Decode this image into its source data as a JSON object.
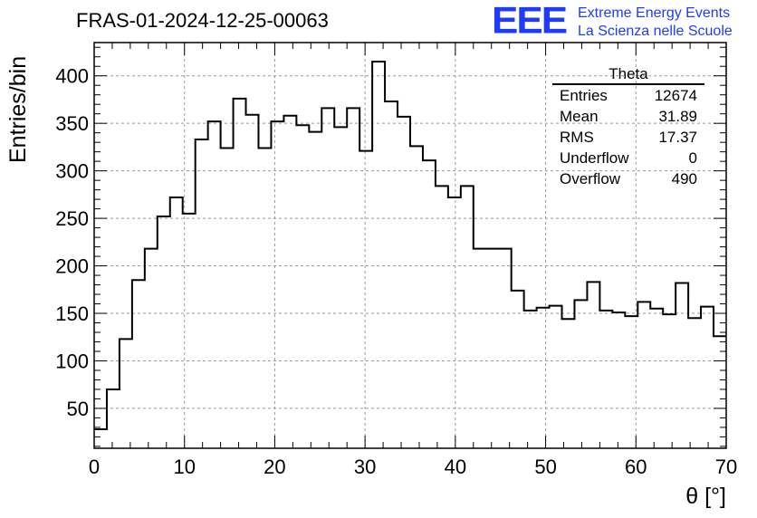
{
  "title": "FRAS-01-2024-12-25-00063",
  "logo": {
    "mark": "EEE",
    "line1": "Extreme Energy Events",
    "line2": "La Scienza nelle Scuole",
    "color": "#1f3bff"
  },
  "stats_box": {
    "title": "Theta",
    "rows": [
      {
        "label": "Entries",
        "value": "12674"
      },
      {
        "label": "Mean",
        "value": "31.89"
      },
      {
        "label": "RMS",
        "value": "17.37"
      },
      {
        "label": "Underflow",
        "value": "0"
      },
      {
        "label": "Overflow",
        "value": "490"
      }
    ]
  },
  "chart_data": {
    "type": "bar",
    "style": "step-histogram",
    "title": "FRAS-01-2024-12-25-00063",
    "xlabel": "θ [°]",
    "ylabel": "Entries/bin",
    "xlim": [
      0,
      70
    ],
    "ylim": [
      8,
      435
    ],
    "bin_width": 1.4,
    "grid": true,
    "x_ticks": [
      0,
      10,
      20,
      30,
      40,
      50,
      60,
      70
    ],
    "y_ticks": [
      50,
      100,
      150,
      200,
      250,
      300,
      350,
      400
    ],
    "values": [
      28,
      70,
      123,
      185,
      218,
      252,
      272,
      255,
      333,
      352,
      324,
      376,
      359,
      324,
      352,
      358,
      348,
      341,
      366,
      346,
      366,
      321,
      415,
      373,
      357,
      326,
      311,
      284,
      272,
      284,
      218,
      218,
      218,
      174,
      153,
      156,
      158,
      144,
      164,
      183,
      153,
      151,
      147,
      162,
      155,
      149,
      182,
      145,
      157,
      126
    ]
  }
}
